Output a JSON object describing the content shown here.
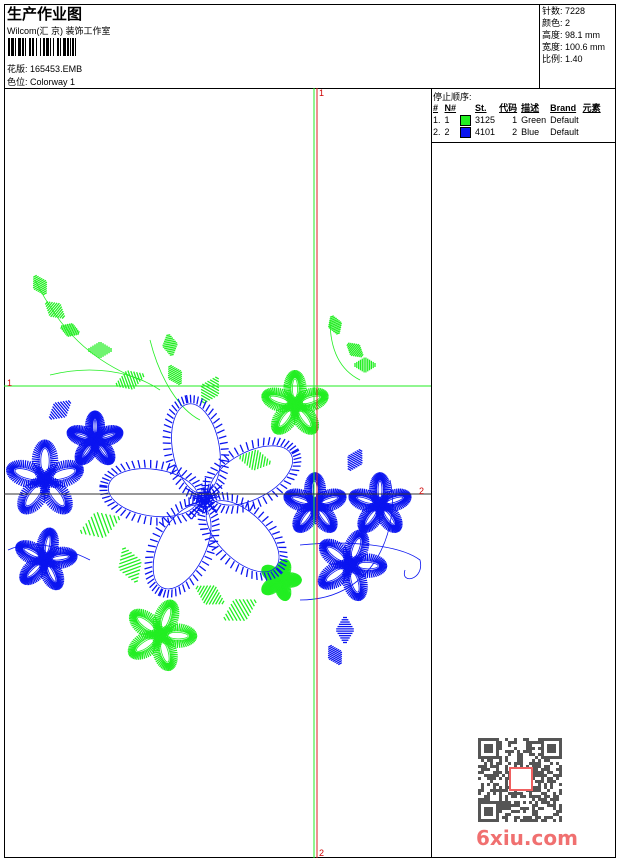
{
  "header": {
    "title": "生产作业图",
    "company": "Wilcom(汇 京) 装饰工作室",
    "design_label": "花版:",
    "design_value": "165453.EMB",
    "colorway_label": "色位:",
    "colorway_value": "Colorway 1"
  },
  "stats": [
    {
      "label": "针数:",
      "value": "7228"
    },
    {
      "label": "颜色:",
      "value": "2"
    },
    {
      "label": "高度:",
      "value": "98.1 mm"
    },
    {
      "label": "宽度:",
      "value": "100.6 mm"
    },
    {
      "label": "比例:",
      "value": "1.40"
    }
  ],
  "stop_sequence": {
    "title": "停止顺序:",
    "columns": [
      "#",
      "N#",
      "St.",
      "代码",
      "描述",
      "Brand",
      "元素"
    ],
    "rows": [
      {
        "num": "1.",
        "n": "1",
        "color": "#22ee22",
        "st": "3125",
        "code": "1",
        "desc": "Green",
        "brand": "Default"
      },
      {
        "num": "2.",
        "n": "2",
        "color": "#0a14f0",
        "st": "4101",
        "code": "2",
        "desc": "Blue",
        "brand": "Default"
      }
    ]
  },
  "axes": {
    "v_top": "1",
    "v_bottom": "2",
    "h1": "1",
    "h2": "2"
  },
  "colors": {
    "green": "#22ee22",
    "blue": "#0a14f0",
    "red_axis": "#dd2222"
  },
  "watermark": {
    "text": "6xiu.com",
    "stamp": "以图版"
  }
}
